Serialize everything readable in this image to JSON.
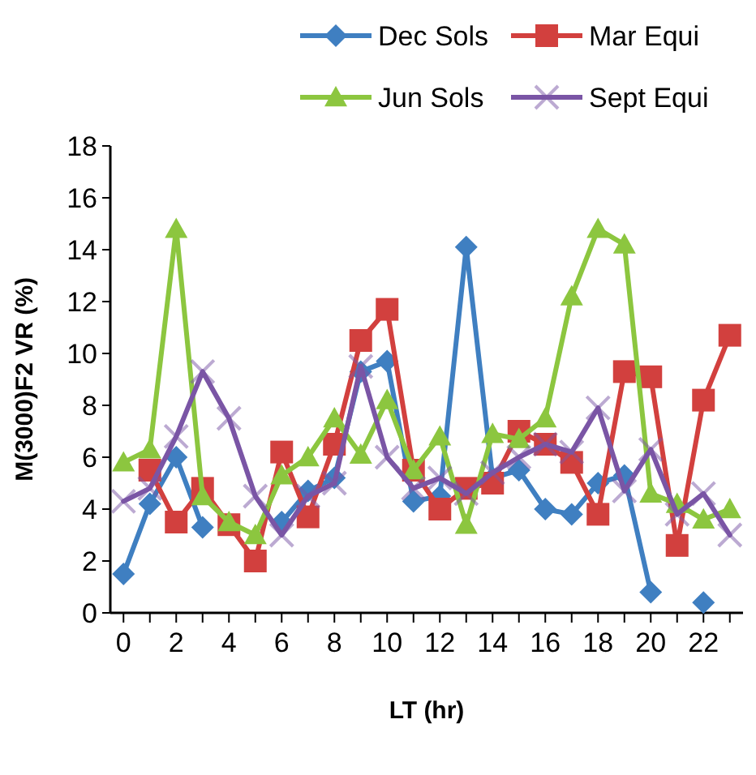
{
  "chart_data": {
    "type": "line",
    "xlabel": "LT (hr)",
    "ylabel": "M(3000)F2  VR (%)",
    "x": [
      0,
      1,
      2,
      3,
      4,
      5,
      6,
      7,
      8,
      9,
      10,
      11,
      12,
      13,
      14,
      15,
      16,
      17,
      18,
      19,
      20,
      21,
      22,
      23
    ],
    "xlim": [
      -0.5,
      23.5
    ],
    "xticks": [
      0,
      2,
      4,
      6,
      8,
      10,
      12,
      14,
      16,
      18,
      20,
      22
    ],
    "ylim": [
      0,
      18
    ],
    "yticks": [
      0,
      2,
      4,
      6,
      8,
      10,
      12,
      14,
      16,
      18
    ],
    "legend": "top",
    "grid": false,
    "series": [
      {
        "name": "Dec Sols",
        "color": "#3f7fc1",
        "marker": "diamond",
        "values": [
          1.5,
          4.2,
          6.0,
          3.3,
          null,
          null,
          3.5,
          4.7,
          5.2,
          9.3,
          9.7,
          4.3,
          4.5,
          14.1,
          5.2,
          5.5,
          4.0,
          3.8,
          5.0,
          5.3,
          0.8,
          null,
          0.4,
          null
        ]
      },
      {
        "name": "Mar Equi",
        "color": "#d2403e",
        "marker": "square",
        "values": [
          null,
          5.5,
          3.5,
          4.8,
          3.4,
          2.0,
          6.2,
          3.7,
          6.5,
          10.5,
          11.7,
          5.5,
          4.0,
          4.8,
          5.0,
          7.0,
          6.5,
          5.8,
          3.8,
          9.3,
          9.1,
          2.6,
          8.2,
          10.7
        ]
      },
      {
        "name": "Jun Sols",
        "color": "#8cc63f",
        "marker": "triangle",
        "values": [
          5.8,
          6.3,
          14.8,
          4.5,
          3.5,
          3.0,
          5.3,
          6.0,
          7.5,
          6.1,
          8.2,
          5.5,
          6.8,
          3.4,
          6.9,
          6.7,
          7.5,
          12.2,
          14.8,
          14.2,
          4.6,
          4.2,
          3.6,
          4.0
        ]
      },
      {
        "name": "Sept Equi",
        "color": "#7a55a5",
        "marker": "cross",
        "values": [
          4.3,
          4.8,
          6.8,
          9.3,
          7.5,
          4.5,
          3.0,
          4.5,
          5.0,
          9.5,
          6.0,
          4.8,
          5.2,
          4.6,
          5.4,
          6.0,
          6.5,
          6.2,
          7.9,
          4.7,
          6.3,
          3.8,
          4.6,
          3.0
        ]
      }
    ]
  }
}
